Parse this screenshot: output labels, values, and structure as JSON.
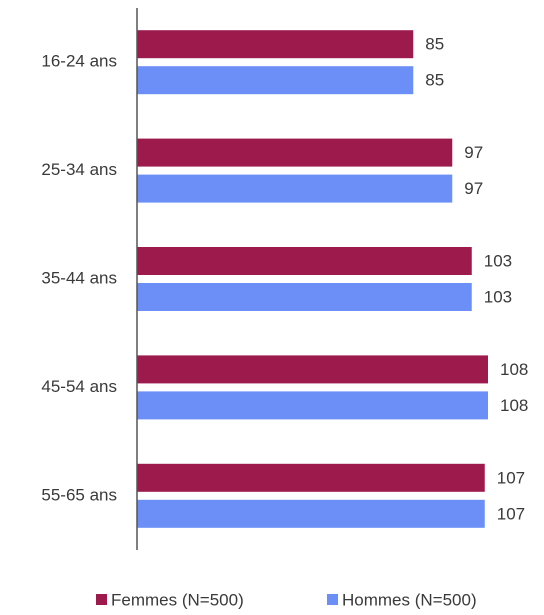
{
  "chart_data": {
    "type": "bar",
    "orientation": "horizontal",
    "categories": [
      "16-24 ans",
      "25-34 ans",
      "35-44 ans",
      "45-54 ans",
      "55-65 ans"
    ],
    "series": [
      {
        "name": "Femmes (N=500)",
        "color": "#9c1a4c",
        "values": [
          85,
          97,
          103,
          108,
          107
        ]
      },
      {
        "name": "Hommes (N=500)",
        "color": "#6b8ff7",
        "values": [
          85,
          97,
          103,
          108,
          107
        ]
      }
    ],
    "xlim": [
      0,
      120
    ],
    "legend": "bottom"
  }
}
